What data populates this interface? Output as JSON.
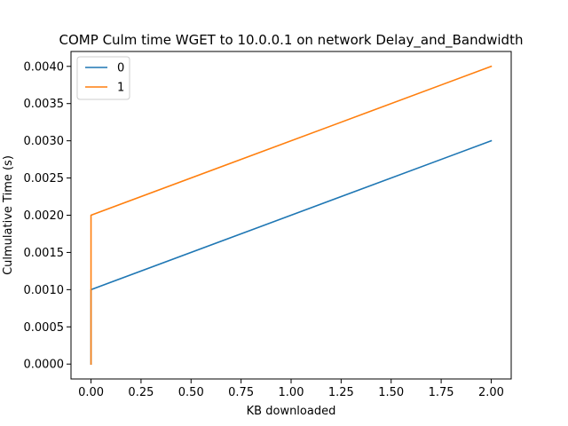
{
  "chart_data": {
    "type": "line",
    "title": "COMP Culm time WGET to 10.0.0.1 on network Delay_and_Bandwidth",
    "xlabel": "KB downloaded",
    "ylabel": "Culmulative Time (s)",
    "xlim": [
      -0.1,
      2.1
    ],
    "ylim": [
      -0.0002,
      0.0042
    ],
    "xticks": [
      0.0,
      0.25,
      0.5,
      0.75,
      1.0,
      1.25,
      1.5,
      1.75,
      2.0
    ],
    "xtick_labels": [
      "0.00",
      "0.25",
      "0.50",
      "0.75",
      "1.00",
      "1.25",
      "1.50",
      "1.75",
      "2.00"
    ],
    "yticks": [
      0.0,
      0.0005,
      0.001,
      0.0015,
      0.002,
      0.0025,
      0.003,
      0.0035,
      0.004
    ],
    "ytick_labels": [
      "0.0000",
      "0.0005",
      "0.0010",
      "0.0015",
      "0.0020",
      "0.0025",
      "0.0030",
      "0.0035",
      "0.0040"
    ],
    "grid": false,
    "legend_position": "top-left",
    "series": [
      {
        "name": "0",
        "color": "#1f77b4",
        "x": [
          0.0,
          0.0,
          2.0
        ],
        "y": [
          0.0,
          0.001,
          0.003
        ]
      },
      {
        "name": "1",
        "color": "#ff7f0e",
        "x": [
          0.0,
          0.0,
          2.0
        ],
        "y": [
          0.0,
          0.002,
          0.004
        ]
      }
    ]
  }
}
